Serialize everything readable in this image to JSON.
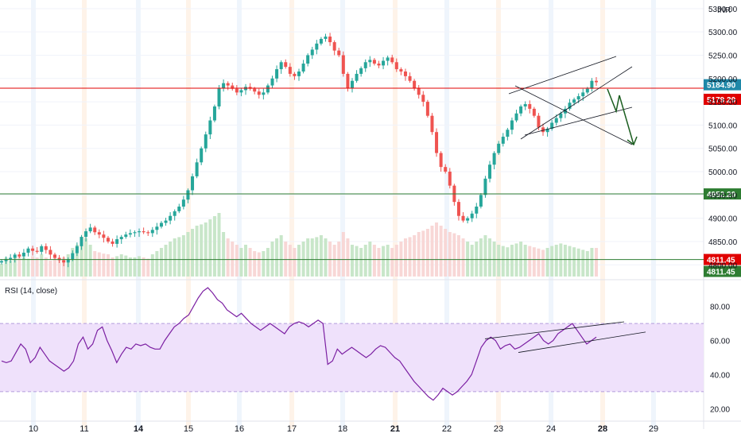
{
  "currency_label": "INR",
  "colors": {
    "up": "#26a69a",
    "down": "#ef5350",
    "up_volume": "#c8e6c9",
    "down_volume": "#f8d7d6",
    "red_line": "#e00000",
    "green_line": "#2e7d32",
    "last_price_badge": "#1e88a8",
    "rsi_line": "#7b1fa2",
    "rsi_band": "#efe1fb",
    "trend_line": "#131722",
    "arrow": "#1b5e20"
  },
  "chart_data": [
    {
      "type": "candlestick",
      "y_axis_ticks": [
        "5350.00",
        "5300.00",
        "5250.00",
        "5200.00",
        "5150.00",
        "5100.00",
        "5050.00",
        "5000.00",
        "4950.00",
        "4900.00",
        "4850.00",
        "4800.00"
      ],
      "ylim": [
        4780,
        5360
      ],
      "x_axis_ticks": [
        {
          "label": "10",
          "bold": false
        },
        {
          "label": "11",
          "bold": false
        },
        {
          "label": "14",
          "bold": true
        },
        {
          "label": "15",
          "bold": false
        },
        {
          "label": "16",
          "bold": false
        },
        {
          "label": "17",
          "bold": false
        },
        {
          "label": "18",
          "bold": false
        },
        {
          "label": "21",
          "bold": true
        },
        {
          "label": "22",
          "bold": false
        },
        {
          "label": "23",
          "bold": false
        },
        {
          "label": "24",
          "bold": false
        },
        {
          "label": "28",
          "bold": true
        },
        {
          "label": "29",
          "bold": false
        }
      ],
      "horizontal_levels": [
        {
          "value": 5184.9,
          "label": "5184.90",
          "color": "last_price_badge",
          "line": false
        },
        {
          "value": 5179.2,
          "label": "5179.20",
          "color": "red_line",
          "line": true
        },
        {
          "value": 4952.2,
          "label": "4952.20",
          "color": "green_line",
          "line": true
        },
        {
          "value": 4811.45,
          "label": "4811.45",
          "color": "red_line",
          "line": false
        },
        {
          "value": 4811.45,
          "label": "4811.45",
          "color": "green_line",
          "line": true
        }
      ],
      "series_close": [
        4808,
        4812,
        4815,
        4822,
        4818,
        4826,
        4835,
        4830,
        4828,
        4840,
        4832,
        4822,
        4815,
        4810,
        4805,
        4812,
        4825,
        4840,
        4860,
        4872,
        4880,
        4870,
        4865,
        4858,
        4850,
        4845,
        4855,
        4860,
        4865,
        4868,
        4870,
        4872,
        4870,
        4868,
        4875,
        4882,
        4890,
        4895,
        4905,
        4915,
        4925,
        4940,
        4960,
        4990,
        5020,
        5050,
        5080,
        5110,
        5140,
        5180,
        5190,
        5185,
        5178,
        5170,
        5175,
        5182,
        5178,
        5172,
        5165,
        5170,
        5185,
        5200,
        5220,
        5235,
        5225,
        5210,
        5205,
        5215,
        5232,
        5250,
        5262,
        5275,
        5285,
        5290,
        5278,
        5260,
        5250,
        5210,
        5180,
        5195,
        5210,
        5222,
        5235,
        5240,
        5232,
        5228,
        5238,
        5245,
        5235,
        5220,
        5215,
        5205,
        5195,
        5180,
        5165,
        5150,
        5120,
        5085,
        5040,
        5010,
        5000,
        4970,
        4935,
        4905,
        4895,
        4900,
        4910,
        4925,
        4950,
        4985,
        5015,
        5040,
        5060,
        5075,
        5090,
        5110,
        5125,
        5140,
        5145,
        5135,
        5120,
        5095,
        5085,
        5092,
        5105,
        5115,
        5125,
        5135,
        5148,
        5155,
        5162,
        5170,
        5178,
        5195,
        5192
      ],
      "volume_relative": [
        0.2,
        0.3,
        0.25,
        0.3,
        0.35,
        0.3,
        0.28,
        0.32,
        0.3,
        0.35,
        0.3,
        0.25,
        0.3,
        0.28,
        0.3,
        0.35,
        0.45,
        0.5,
        0.55,
        0.6,
        0.5,
        0.4,
        0.38,
        0.36,
        0.35,
        0.3,
        0.32,
        0.35,
        0.33,
        0.3,
        0.3,
        0.32,
        0.3,
        0.28,
        0.35,
        0.4,
        0.45,
        0.5,
        0.55,
        0.6,
        0.62,
        0.65,
        0.7,
        0.75,
        0.8,
        0.82,
        0.85,
        0.9,
        0.95,
        1.0,
        0.7,
        0.6,
        0.55,
        0.5,
        0.45,
        0.5,
        0.45,
        0.4,
        0.38,
        0.4,
        0.45,
        0.55,
        0.6,
        0.65,
        0.55,
        0.5,
        0.45,
        0.5,
        0.55,
        0.6,
        0.6,
        0.62,
        0.65,
        0.6,
        0.55,
        0.5,
        0.55,
        0.7,
        0.6,
        0.5,
        0.48,
        0.45,
        0.5,
        0.55,
        0.5,
        0.45,
        0.48,
        0.5,
        0.45,
        0.5,
        0.55,
        0.6,
        0.62,
        0.65,
        0.7,
        0.72,
        0.75,
        0.8,
        0.85,
        0.8,
        0.75,
        0.7,
        0.68,
        0.65,
        0.6,
        0.55,
        0.5,
        0.55,
        0.6,
        0.65,
        0.6,
        0.55,
        0.5,
        0.48,
        0.46,
        0.5,
        0.52,
        0.55,
        0.5,
        0.48,
        0.46,
        0.44,
        0.42,
        0.45,
        0.48,
        0.5,
        0.52,
        0.5,
        0.48,
        0.46,
        0.44,
        0.42,
        0.4,
        0.45,
        0.45
      ]
    },
    {
      "type": "line",
      "title": "RSI (14, close)",
      "y_axis_ticks": [
        "80.00",
        "60.00",
        "40.00",
        "20.00"
      ],
      "ylim": [
        15,
        92
      ],
      "band": [
        30,
        70
      ],
      "values": [
        48,
        47,
        48,
        53,
        58,
        55,
        47,
        50,
        56,
        52,
        48,
        46,
        44,
        42,
        44,
        48,
        58,
        62,
        55,
        58,
        66,
        68,
        60,
        54,
        47,
        52,
        56,
        55,
        58,
        57,
        58,
        56,
        55,
        55,
        60,
        64,
        68,
        70,
        73,
        75,
        80,
        85,
        89,
        91,
        88,
        84,
        82,
        78,
        76,
        74,
        76,
        73,
        70,
        68,
        66,
        68,
        70,
        68,
        66,
        64,
        68,
        70,
        71,
        70,
        68,
        70,
        72,
        70,
        46,
        48,
        55,
        52,
        54,
        56,
        54,
        52,
        50,
        52,
        55,
        57,
        56,
        53,
        50,
        48,
        44,
        40,
        36,
        33,
        30,
        27,
        25,
        28,
        32,
        30,
        28,
        30,
        33,
        36,
        40,
        48,
        56,
        60,
        62,
        60,
        55,
        57,
        58,
        55,
        56,
        58,
        60,
        62,
        64,
        60,
        58,
        60,
        64,
        66,
        68,
        70,
        66,
        62,
        58,
        60,
        62
      ]
    }
  ],
  "annotations": {
    "rsi_trend": "rising channel",
    "price_pattern": "broadening wedge"
  }
}
